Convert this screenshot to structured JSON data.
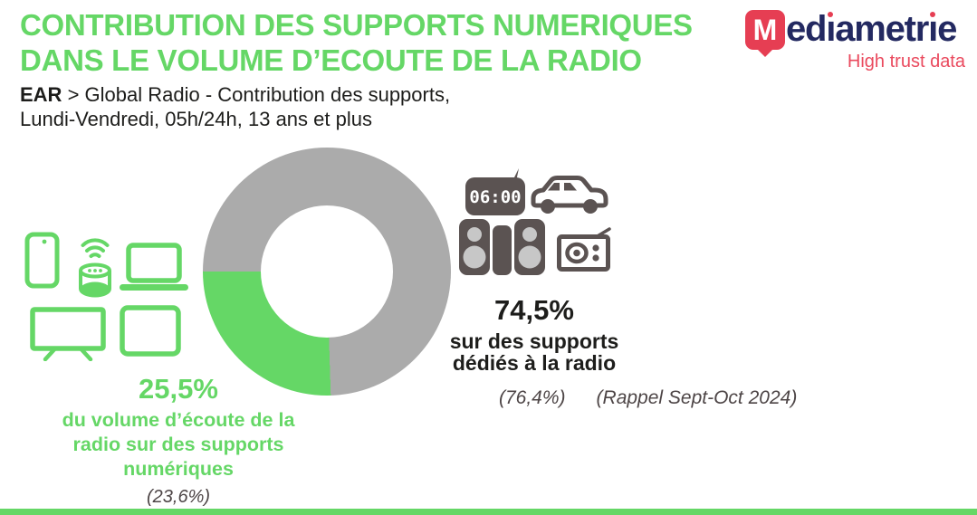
{
  "colors": {
    "accent_green": "#65D766",
    "slice_gray": "#ABABAB",
    "icon_dark": "#5B5352",
    "icon_light": "#C7C7C7",
    "text_black": "#1D1D1B",
    "text_muted": "#4D4546",
    "logo_navy": "#232961",
    "logo_red": "#E63E53",
    "tagline_red": "#EA4A5E"
  },
  "header": {
    "title_line1": "CONTRIBUTION DES SUPPORTS NUMERIQUES",
    "title_line2": "DANS LE VOLUME D’ECOUTE DE LA RADIO",
    "subtitle_bold": "EAR",
    "subtitle_rest": " > Global Radio - Contribution des supports,",
    "subtitle_line2": "Lundi-Vendredi, 05h/24h, 13 ans et plus"
  },
  "logo": {
    "mark_letter": "M",
    "wordmark": "ediametrie",
    "tagline": "High trust data"
  },
  "chart_data": {
    "type": "pie",
    "subtype": "donut",
    "title": "Contribution des supports numériques dans le volume d'écoute de la radio",
    "slices": [
      {
        "label": "du volume d’écoute de la radio sur des supports numériques",
        "value": 25.5,
        "previous_value": 23.6,
        "color": "#65D766"
      },
      {
        "label": "sur des supports dédiés à la radio",
        "value": 74.5,
        "previous_value": 76.4,
        "color": "#ABABAB"
      }
    ],
    "recall_period": "(Rappel Sept-Oct 2024)",
    "donut_hole_ratio": 0.53,
    "green_slice_end_angle_deg": 270,
    "legend_position": "none"
  },
  "digital": {
    "value": "25,5%",
    "caption": "du volume d’écoute de la radio sur des supports numériques",
    "previous": "(23,6%)",
    "icons": [
      "smartphone",
      "smart-speaker",
      "laptop",
      "tv",
      "tablet"
    ]
  },
  "dedicated": {
    "value": "74,5%",
    "caption_line1": "sur des supports",
    "caption_line2": "dédiés à la radio",
    "previous": "(76,4%)",
    "recall": "(Rappel Sept-Oct 2024)",
    "clock_display": "06:00",
    "icons": [
      "clock-radio",
      "car",
      "hifi-system",
      "radio"
    ]
  }
}
